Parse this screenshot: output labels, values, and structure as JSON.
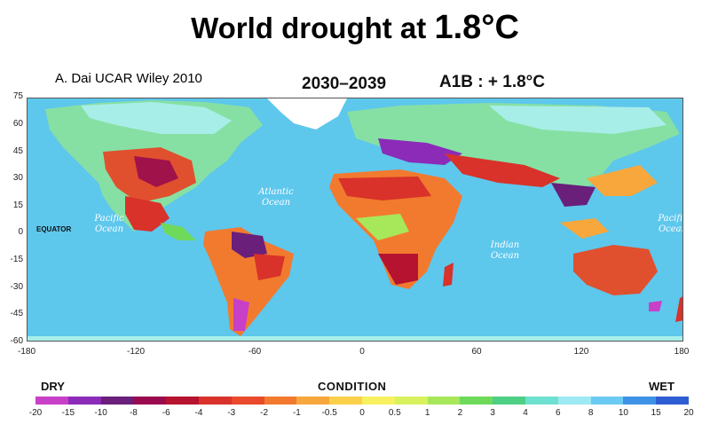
{
  "title": {
    "main": "World drought at ",
    "value": "1.8°C"
  },
  "credit": "A. Dai UCAR Wiley 2010",
  "period": "2030–2039",
  "scenario": "A1B : + 1.8°C",
  "map": {
    "y_ticks": [
      "75",
      "60",
      "45",
      "30",
      "15",
      "0",
      "-15",
      "-30",
      "-45",
      "-60"
    ],
    "x_ticks": [
      "-180",
      "-120",
      "-60",
      "0",
      "60",
      "120",
      "180"
    ],
    "oceans": {
      "atlantic": [
        "Atlantic",
        "Ocean"
      ],
      "pacific_left": [
        "Pacific",
        "Ocean"
      ],
      "pacific_right": [
        "Pacific",
        "Ocean"
      ],
      "indian": [
        "Indian",
        "Ocean"
      ]
    },
    "equator_label": "EQUATOR"
  },
  "legend": {
    "dry_label": "DRY",
    "wet_label": "WET",
    "condition_label": "CONDITION",
    "ticks": [
      "-20",
      "-15",
      "-10",
      "-8",
      "-6",
      "-4",
      "-3",
      "-2",
      "-1",
      "-0.5",
      "0",
      "0.5",
      "1",
      "2",
      "3",
      "4",
      "6",
      "8",
      "10",
      "15",
      "20"
    ],
    "colors": [
      "#c83fc8",
      "#8b2bb8",
      "#6a1f7a",
      "#9a0a4f",
      "#b5132f",
      "#d8322a",
      "#ea4a2c",
      "#f27a2f",
      "#f7a73c",
      "#fbd04a",
      "#f7f160",
      "#d8f25e",
      "#a6e85a",
      "#6fd95b",
      "#4dcf86",
      "#6ee0cf",
      "#9ee9f2",
      "#6bcaf2",
      "#3f93e6",
      "#2f5ed3"
    ]
  }
}
